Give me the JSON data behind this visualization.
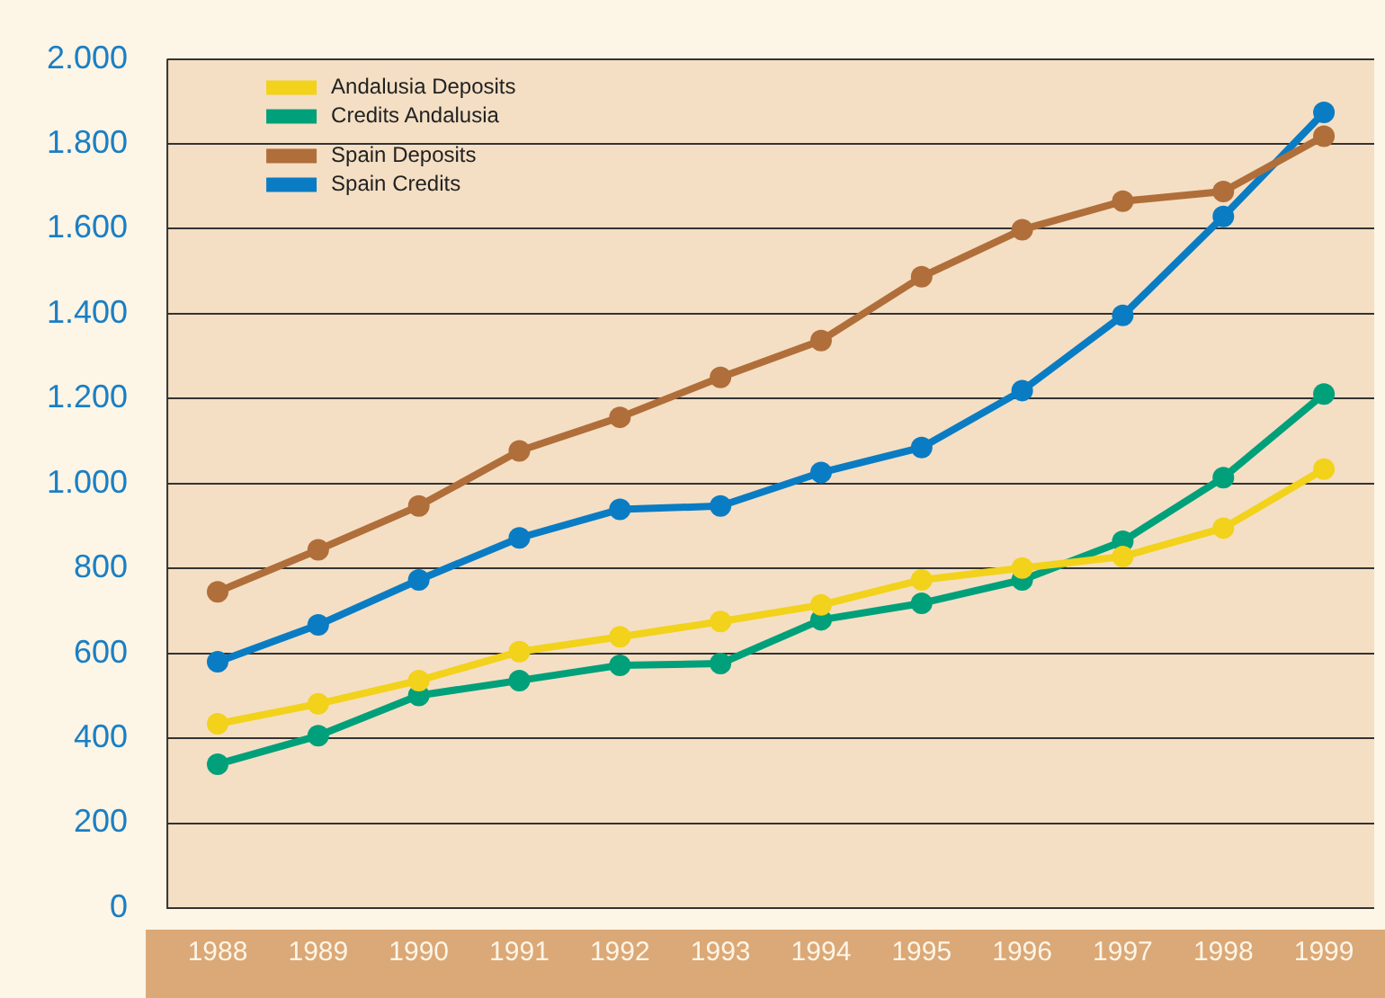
{
  "chart_data": {
    "type": "line",
    "categories": [
      "1988",
      "1989",
      "1990",
      "1991",
      "1992",
      "1993",
      "1994",
      "1995",
      "1996",
      "1997",
      "1998",
      "1999"
    ],
    "series": [
      {
        "name": "Andalusia Deposits",
        "color": "#f2d21b",
        "values": [
          434,
          481,
          536,
          604,
          639,
          675,
          714,
          773,
          801,
          828,
          895,
          1034
        ]
      },
      {
        "name": "Credits Andalusia",
        "color": "#00a07a",
        "values": [
          339,
          406,
          501,
          536,
          572,
          576,
          679,
          718,
          773,
          864,
          1014,
          1211
        ]
      },
      {
        "name": "Spain Deposits",
        "color": "#b06e3a",
        "values": [
          745,
          844,
          947,
          1077,
          1156,
          1250,
          1337,
          1487,
          1598,
          1665,
          1688,
          1818
        ]
      },
      {
        "name": "Spain Credits",
        "color": "#0a7cc4",
        "values": [
          580,
          667,
          773,
          872,
          939,
          947,
          1026,
          1085,
          1219,
          1396,
          1629,
          1874
        ]
      }
    ],
    "ylim": [
      0,
      2000
    ],
    "yticks": [
      {
        "value": 0,
        "label": "0"
      },
      {
        "value": 200,
        "label": "200"
      },
      {
        "value": 400,
        "label": "400"
      },
      {
        "value": 600,
        "label": "600"
      },
      {
        "value": 800,
        "label": "800"
      },
      {
        "value": 1000,
        "label": "1.000"
      },
      {
        "value": 1200,
        "label": "1.200"
      },
      {
        "value": 1400,
        "label": "1.400"
      },
      {
        "value": 1600,
        "label": "1.600"
      },
      {
        "value": 1800,
        "label": "1.800"
      },
      {
        "value": 2000,
        "label": "2.000"
      }
    ],
    "grid": "y",
    "legend": "top left",
    "marker": "circle",
    "line_style": "solid"
  }
}
